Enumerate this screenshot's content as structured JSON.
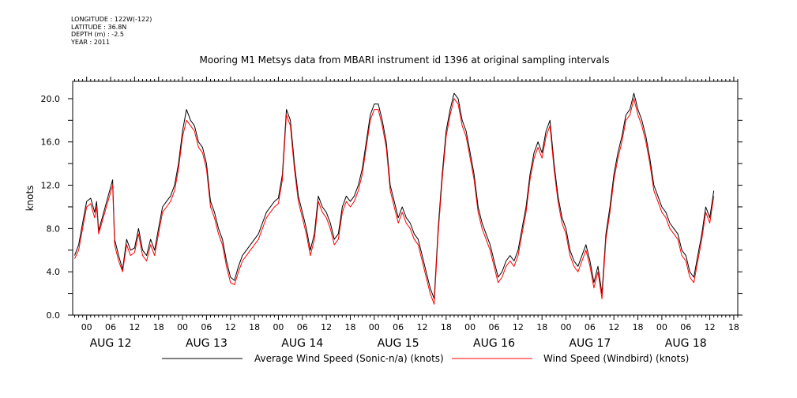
{
  "header": {
    "longitude": "LONGITUDE : 122W(-122)",
    "latitude": "LATITUDE : 36.8N",
    "depth": "DEPTH (m) : -2.5",
    "year": "YEAR : 2011"
  },
  "chart_data": {
    "type": "line",
    "title": "Mooring M1 Metsys data from MBARI instrument id 1396 at original sampling intervals",
    "ylabel": "knots",
    "xlabel": "",
    "ylim": [
      0,
      21.6
    ],
    "yticks": [
      0.0,
      4.0,
      8.0,
      12.0,
      16.0,
      20.0
    ],
    "ytick_labels": [
      "0.0",
      "4.0",
      "8.0",
      "12.0",
      "16.0",
      "20.0"
    ],
    "x_unit": "hours since 00 on Aug 12, 2011",
    "xlim": [
      -3.5,
      163
    ],
    "xtick_hours": [
      "00",
      "06",
      "12",
      "18"
    ],
    "day_labels": [
      "AUG 12",
      "AUG 13",
      "AUG 14",
      "AUG 15",
      "AUG 16",
      "AUG 17",
      "AUG 18"
    ],
    "grid": false,
    "legend_position": "bottom",
    "series": [
      {
        "name": "Average Wind Speed (Sonic-n/a) (knots)",
        "color": "#000000",
        "points": [
          [
            -3,
            5.5
          ],
          [
            -2,
            6.5
          ],
          [
            -1,
            8.5
          ],
          [
            0,
            10.5
          ],
          [
            1,
            10.8
          ],
          [
            2,
            9.5
          ],
          [
            2.5,
            10.5
          ],
          [
            3,
            7.8
          ],
          [
            6.5,
            12.5
          ],
          [
            7,
            7
          ],
          [
            8,
            5.5
          ],
          [
            9,
            4.2
          ],
          [
            10,
            7
          ],
          [
            11,
            6
          ],
          [
            12,
            6.2
          ],
          [
            13,
            8
          ],
          [
            14,
            6
          ],
          [
            15,
            5.5
          ],
          [
            16,
            7
          ],
          [
            17,
            6
          ],
          [
            18,
            8
          ],
          [
            19,
            10
          ],
          [
            20,
            10.5
          ],
          [
            21,
            11
          ],
          [
            22,
            12
          ],
          [
            23,
            14
          ],
          [
            24,
            17
          ],
          [
            25,
            19
          ],
          [
            26,
            18
          ],
          [
            27,
            17.5
          ],
          [
            28,
            16
          ],
          [
            29,
            15.5
          ],
          [
            30,
            14
          ],
          [
            31,
            10.5
          ],
          [
            32,
            9.5
          ],
          [
            33,
            8
          ],
          [
            34,
            7
          ],
          [
            35,
            5
          ],
          [
            36,
            3.5
          ],
          [
            37,
            3.2
          ],
          [
            38,
            4.5
          ],
          [
            39,
            5.5
          ],
          [
            40,
            6
          ],
          [
            41,
            6.5
          ],
          [
            42,
            7
          ],
          [
            43,
            7.5
          ],
          [
            44,
            8.5
          ],
          [
            45,
            9.5
          ],
          [
            46,
            10
          ],
          [
            47,
            10.5
          ],
          [
            48,
            10.8
          ],
          [
            49,
            13
          ],
          [
            50,
            19
          ],
          [
            51,
            18
          ],
          [
            52,
            14
          ],
          [
            53,
            11
          ],
          [
            54,
            9.5
          ],
          [
            55,
            8
          ],
          [
            56,
            6
          ],
          [
            57,
            7.5
          ],
          [
            58,
            11
          ],
          [
            59,
            10
          ],
          [
            60,
            9.5
          ],
          [
            61,
            8.5
          ],
          [
            62,
            7
          ],
          [
            63,
            7.5
          ],
          [
            64,
            10
          ],
          [
            65,
            11
          ],
          [
            66,
            10.5
          ],
          [
            67,
            11
          ],
          [
            68,
            12
          ],
          [
            69,
            13.5
          ],
          [
            70,
            16
          ],
          [
            71,
            18.5
          ],
          [
            72,
            19.5
          ],
          [
            73,
            19.5
          ],
          [
            74,
            18
          ],
          [
            75,
            16
          ],
          [
            76,
            12
          ],
          [
            77,
            10.5
          ],
          [
            78,
            9
          ],
          [
            79,
            10
          ],
          [
            80,
            9
          ],
          [
            81,
            8.5
          ],
          [
            82,
            7.5
          ],
          [
            83,
            7
          ],
          [
            84,
            5.5
          ],
          [
            85,
            4
          ],
          [
            86,
            2.5
          ],
          [
            87,
            1.5
          ],
          [
            88,
            8
          ],
          [
            89,
            13
          ],
          [
            90,
            17
          ],
          [
            91,
            19
          ],
          [
            92,
            20.5
          ],
          [
            93,
            20
          ],
          [
            94,
            18
          ],
          [
            95,
            17
          ],
          [
            96,
            15
          ],
          [
            97,
            13
          ],
          [
            98,
            10
          ],
          [
            99,
            8.5
          ],
          [
            100,
            7.5
          ],
          [
            101,
            6.5
          ],
          [
            102,
            5
          ],
          [
            103,
            3.5
          ],
          [
            104,
            4
          ],
          [
            105,
            5
          ],
          [
            106,
            5.5
          ],
          [
            107,
            5
          ],
          [
            108,
            6
          ],
          [
            109,
            8
          ],
          [
            110,
            10
          ],
          [
            111,
            13
          ],
          [
            112,
            15
          ],
          [
            113,
            16
          ],
          [
            114,
            15
          ],
          [
            115,
            17
          ],
          [
            116,
            18
          ],
          [
            117,
            14
          ],
          [
            118,
            11
          ],
          [
            119,
            9
          ],
          [
            120,
            8
          ],
          [
            121,
            6
          ],
          [
            122,
            5
          ],
          [
            123,
            4.5
          ],
          [
            124,
            5.5
          ],
          [
            125,
            6.5
          ],
          [
            126,
            5
          ],
          [
            127,
            3
          ],
          [
            128,
            4.5
          ],
          [
            129,
            2
          ],
          [
            130,
            7.5
          ],
          [
            131,
            10
          ],
          [
            132,
            13
          ],
          [
            133,
            15
          ],
          [
            134,
            16.5
          ],
          [
            135,
            18.5
          ],
          [
            136,
            19
          ],
          [
            137,
            20.5
          ],
          [
            138,
            19
          ],
          [
            139,
            18
          ],
          [
            140,
            16.5
          ],
          [
            141,
            14.5
          ],
          [
            142,
            12
          ],
          [
            143,
            11
          ],
          [
            144,
            10
          ],
          [
            145,
            9.5
          ],
          [
            146,
            8.5
          ],
          [
            147,
            8
          ],
          [
            148,
            7.5
          ],
          [
            149,
            6
          ],
          [
            150,
            5.5
          ],
          [
            151,
            4
          ],
          [
            152,
            3.5
          ],
          [
            153,
            5.5
          ],
          [
            154,
            7.5
          ],
          [
            155,
            10
          ],
          [
            156,
            9
          ],
          [
            157,
            11.5
          ]
        ]
      },
      {
        "name": "Wind Speed (Windbird) (knots)",
        "color": "#ff0000",
        "points": [
          [
            -3,
            5.2
          ],
          [
            -2,
            6
          ],
          [
            -1,
            8
          ],
          [
            0,
            10
          ],
          [
            1,
            10.3
          ],
          [
            2,
            9
          ],
          [
            2.5,
            10
          ],
          [
            3,
            7.5
          ],
          [
            6.5,
            12
          ],
          [
            7,
            6.5
          ],
          [
            8,
            5
          ],
          [
            9,
            4
          ],
          [
            10,
            6.5
          ],
          [
            11,
            5.5
          ],
          [
            12,
            5.8
          ],
          [
            13,
            7.5
          ],
          [
            14,
            5.5
          ],
          [
            15,
            5
          ],
          [
            16,
            6.5
          ],
          [
            17,
            5.5
          ],
          [
            18,
            7.5
          ],
          [
            19,
            9.5
          ],
          [
            20,
            10
          ],
          [
            21,
            10.5
          ],
          [
            22,
            11.5
          ],
          [
            23,
            13.5
          ],
          [
            24,
            16.5
          ],
          [
            25,
            18
          ],
          [
            26,
            17.5
          ],
          [
            27,
            17
          ],
          [
            28,
            15.5
          ],
          [
            29,
            15
          ],
          [
            30,
            13.5
          ],
          [
            31,
            10
          ],
          [
            32,
            9
          ],
          [
            33,
            7.5
          ],
          [
            34,
            6.5
          ],
          [
            35,
            4.5
          ],
          [
            36,
            3
          ],
          [
            37,
            2.8
          ],
          [
            38,
            4
          ],
          [
            39,
            5
          ],
          [
            40,
            5.5
          ],
          [
            41,
            6
          ],
          [
            42,
            6.5
          ],
          [
            43,
            7
          ],
          [
            44,
            8
          ],
          [
            45,
            9
          ],
          [
            46,
            9.5
          ],
          [
            47,
            10
          ],
          [
            48,
            10.3
          ],
          [
            49,
            12.5
          ],
          [
            50,
            18.5
          ],
          [
            51,
            17.5
          ],
          [
            52,
            13.5
          ],
          [
            53,
            10.5
          ],
          [
            54,
            9
          ],
          [
            55,
            7.5
          ],
          [
            56,
            5.5
          ],
          [
            57,
            7
          ],
          [
            58,
            10.5
          ],
          [
            59,
            9.5
          ],
          [
            60,
            9
          ],
          [
            61,
            8
          ],
          [
            62,
            6.5
          ],
          [
            63,
            7
          ],
          [
            64,
            9.5
          ],
          [
            65,
            10.5
          ],
          [
            66,
            10
          ],
          [
            67,
            10.5
          ],
          [
            68,
            11.5
          ],
          [
            69,
            13
          ],
          [
            70,
            15.5
          ],
          [
            71,
            18
          ],
          [
            72,
            19
          ],
          [
            73,
            19
          ],
          [
            74,
            17.5
          ],
          [
            75,
            15.5
          ],
          [
            76,
            11.5
          ],
          [
            77,
            10
          ],
          [
            78,
            8.5
          ],
          [
            79,
            9.5
          ],
          [
            80,
            8.5
          ],
          [
            81,
            8
          ],
          [
            82,
            7
          ],
          [
            83,
            6.5
          ],
          [
            84,
            5
          ],
          [
            85,
            3.5
          ],
          [
            86,
            2
          ],
          [
            87,
            1
          ],
          [
            88,
            7.5
          ],
          [
            89,
            12.5
          ],
          [
            90,
            16.5
          ],
          [
            91,
            18.5
          ],
          [
            92,
            20
          ],
          [
            93,
            19.5
          ],
          [
            94,
            17.5
          ],
          [
            95,
            16.5
          ],
          [
            96,
            14.5
          ],
          [
            97,
            12.5
          ],
          [
            98,
            9.5
          ],
          [
            99,
            8
          ],
          [
            100,
            7
          ],
          [
            101,
            6
          ],
          [
            102,
            4.5
          ],
          [
            103,
            3
          ],
          [
            104,
            3.5
          ],
          [
            105,
            4.5
          ],
          [
            106,
            5
          ],
          [
            107,
            4.5
          ],
          [
            108,
            5.5
          ],
          [
            109,
            7.5
          ],
          [
            110,
            9.5
          ],
          [
            111,
            12.5
          ],
          [
            112,
            14.5
          ],
          [
            113,
            15.5
          ],
          [
            114,
            14.5
          ],
          [
            115,
            16.5
          ],
          [
            116,
            17.5
          ],
          [
            117,
            13.5
          ],
          [
            118,
            10.5
          ],
          [
            119,
            8.5
          ],
          [
            120,
            7.5
          ],
          [
            121,
            5.5
          ],
          [
            122,
            4.5
          ],
          [
            123,
            4
          ],
          [
            124,
            5
          ],
          [
            125,
            6
          ],
          [
            126,
            4.5
          ],
          [
            127,
            2.5
          ],
          [
            128,
            4
          ],
          [
            129,
            1.5
          ],
          [
            130,
            7
          ],
          [
            131,
            9.5
          ],
          [
            132,
            12.5
          ],
          [
            133,
            14.5
          ],
          [
            134,
            16
          ],
          [
            135,
            18
          ],
          [
            136,
            18.5
          ],
          [
            137,
            20
          ],
          [
            138,
            18.5
          ],
          [
            139,
            17.5
          ],
          [
            140,
            16
          ],
          [
            141,
            14
          ],
          [
            142,
            11.5
          ],
          [
            143,
            10.5
          ],
          [
            144,
            9.5
          ],
          [
            145,
            9
          ],
          [
            146,
            8
          ],
          [
            147,
            7.5
          ],
          [
            148,
            7
          ],
          [
            149,
            5.5
          ],
          [
            150,
            5
          ],
          [
            151,
            3.5
          ],
          [
            152,
            3
          ],
          [
            153,
            5
          ],
          [
            154,
            7
          ],
          [
            155,
            9.5
          ],
          [
            156,
            8.5
          ],
          [
            157,
            11
          ]
        ]
      }
    ]
  }
}
